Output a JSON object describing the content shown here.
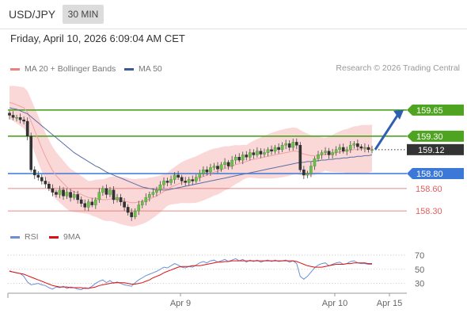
{
  "header": {
    "symbol": "USD/JPY",
    "timeframe": "30 MIN"
  },
  "panel": {
    "datetime": "Friday, April 10, 2026 6:09:04 AM CET",
    "legend": [
      {
        "label": "MA 20 + Bollinger Bands",
        "color": "#f08080"
      },
      {
        "label": "MA 50",
        "color": "#3a5a9a"
      }
    ],
    "credit": "Research © 2026 Trading Central",
    "rsi_legend": [
      {
        "label": "RSI",
        "color": "#6b8fd6"
      },
      {
        "label": "9MA",
        "color": "#dd1111"
      }
    ]
  },
  "colors": {
    "up": "#6cc04a",
    "down": "#333333",
    "wick": "#444444",
    "band": "#fbd8d8",
    "ma20": "#f0a0a0",
    "ma50": "#5a6ea8",
    "resistance": "#4ea320",
    "pivot": "#3b78d8",
    "support": "#e06060",
    "current": "#333333",
    "arrow": "#2f5fb0"
  },
  "chart_data": [
    {
      "type": "candlestick",
      "title": "USD/JPY 30 MIN",
      "x_tick_labels": [
        "Apr 9",
        "Apr 10",
        "Apr 15"
      ],
      "ylim": [
        158.1,
        159.85
      ],
      "current_price": 159.12,
      "levels": [
        {
          "label": "159.65",
          "value": 159.65,
          "kind": "resistance"
        },
        {
          "label": "159.30",
          "value": 159.3,
          "kind": "resistance"
        },
        {
          "label": "158.80",
          "value": 158.8,
          "kind": "pivot"
        },
        {
          "label": "158.60",
          "value": 158.6,
          "kind": "support"
        },
        {
          "label": "158.30",
          "value": 158.3,
          "kind": "support"
        }
      ],
      "current_label": "159.12",
      "target_arrow": {
        "from": 159.12,
        "to": 159.65
      },
      "closes": [
        159.58,
        159.55,
        159.55,
        159.52,
        159.5,
        159.3,
        158.85,
        158.78,
        158.75,
        158.7,
        158.66,
        158.6,
        158.55,
        158.52,
        158.58,
        158.5,
        158.55,
        158.48,
        158.52,
        158.45,
        158.4,
        158.35,
        158.42,
        158.38,
        158.45,
        158.55,
        158.6,
        158.52,
        158.58,
        158.45,
        158.48,
        158.42,
        158.35,
        158.28,
        158.22,
        158.3,
        158.38,
        158.42,
        158.48,
        158.52,
        158.55,
        158.58,
        158.65,
        158.7,
        158.68,
        158.72,
        158.78,
        158.75,
        158.7,
        158.68,
        158.72,
        158.7,
        158.75,
        158.8,
        158.85,
        158.82,
        158.88,
        158.9,
        158.86,
        158.92,
        158.95,
        158.9,
        158.98,
        159.02,
        158.98,
        159.05,
        159.02,
        159.08,
        159.05,
        159.1,
        159.06,
        159.08,
        159.12,
        159.1,
        159.15,
        159.12,
        159.18,
        159.2,
        159.15,
        159.22,
        159.18,
        158.85,
        158.78,
        158.8,
        158.9,
        159.0,
        159.05,
        159.08,
        159.1,
        159.05,
        159.08,
        159.12,
        159.15,
        159.1,
        159.12,
        159.18,
        159.2,
        159.16,
        159.14,
        159.15,
        159.12,
        159.12
      ],
      "ma20": [
        159.75,
        159.74,
        159.72,
        159.7,
        159.68,
        159.62,
        159.5,
        159.38,
        159.26,
        159.14,
        159.03,
        158.93,
        158.84,
        158.77,
        158.72,
        158.67,
        158.62,
        158.58,
        158.56,
        158.54,
        158.52,
        158.5,
        158.48,
        158.47,
        158.47,
        158.46,
        158.45,
        158.45,
        158.46,
        158.46,
        158.45,
        158.44,
        158.43,
        158.42,
        158.41,
        158.41,
        158.42,
        158.43,
        158.44,
        158.46,
        158.48,
        158.5,
        158.53,
        158.56,
        158.59,
        158.62,
        158.64,
        158.66,
        158.68,
        158.69,
        158.7,
        158.71,
        158.72,
        158.74,
        158.76,
        158.78,
        158.8,
        158.82,
        158.83,
        158.85,
        158.87,
        158.88,
        158.9,
        158.92,
        158.93,
        158.95,
        158.96,
        158.98,
        158.99,
        159.0,
        159.01,
        159.02,
        159.03,
        159.04,
        159.05,
        159.06,
        159.07,
        159.08,
        159.09,
        159.1,
        159.1,
        159.08,
        159.06,
        159.05,
        159.04,
        159.04,
        159.05,
        159.05,
        159.06,
        159.06,
        159.07,
        159.08,
        159.09,
        159.1,
        159.1,
        159.11,
        159.12,
        159.12,
        159.13,
        159.13,
        159.13,
        159.14
      ],
      "ma50": [
        159.68,
        159.67,
        159.66,
        159.64,
        159.62,
        159.6,
        159.56,
        159.52,
        159.48,
        159.44,
        159.4,
        159.36,
        159.32,
        159.28,
        159.24,
        159.2,
        159.16,
        159.12,
        159.08,
        159.05,
        159.02,
        158.99,
        158.96,
        158.93,
        158.9,
        158.88,
        158.85,
        158.82,
        158.8,
        158.78,
        158.76,
        158.74,
        158.72,
        158.7,
        158.68,
        158.66,
        158.64,
        158.62,
        158.61,
        158.6,
        158.59,
        158.58,
        158.58,
        158.58,
        158.58,
        158.59,
        158.6,
        158.61,
        158.62,
        158.63,
        158.64,
        158.65,
        158.66,
        158.67,
        158.68,
        158.69,
        158.7,
        158.71,
        158.72,
        158.73,
        158.74,
        158.75,
        158.76,
        158.77,
        158.78,
        158.79,
        158.8,
        158.81,
        158.82,
        158.83,
        158.84,
        158.85,
        158.86,
        158.87,
        158.88,
        158.89,
        158.9,
        158.91,
        158.92,
        158.93,
        158.94,
        158.95,
        158.95,
        158.96,
        158.96,
        158.97,
        158.97,
        158.98,
        158.98,
        158.99,
        158.99,
        159.0,
        159.0,
        159.01,
        159.01,
        159.02,
        159.02,
        159.03,
        159.03,
        159.04,
        159.04,
        159.05
      ]
    },
    {
      "type": "line",
      "title": "RSI",
      "ylim": [
        15,
        80
      ],
      "y_ticks": [
        "70",
        "50",
        "30"
      ],
      "y_tick_values": [
        70,
        50,
        30
      ],
      "rsi": [
        48,
        46,
        45,
        44,
        40,
        32,
        28,
        29,
        30,
        28,
        27,
        24,
        22,
        25,
        24,
        26,
        23,
        25,
        24,
        22,
        21,
        24,
        23,
        26,
        30,
        33,
        35,
        31,
        34,
        30,
        32,
        30,
        28,
        27,
        26,
        31,
        35,
        38,
        41,
        43,
        45,
        47,
        50,
        53,
        52,
        55,
        58,
        56,
        53,
        52,
        54,
        53,
        56,
        59,
        61,
        59,
        62,
        63,
        60,
        62,
        64,
        61,
        63,
        65,
        62,
        64,
        60,
        63,
        61,
        63,
        60,
        62,
        63,
        61,
        63,
        61,
        62,
        63,
        60,
        62,
        58,
        40,
        36,
        40,
        46,
        52,
        56,
        58,
        59,
        55,
        57,
        59,
        60,
        57,
        58,
        61,
        62,
        59,
        58,
        58,
        57,
        57
      ],
      "ma9": [
        47,
        46,
        45,
        44,
        43,
        41,
        39,
        37,
        35,
        33,
        31,
        29,
        27,
        26,
        25,
        25,
        25,
        24,
        24,
        24,
        24,
        23,
        23,
        24,
        25,
        27,
        28,
        29,
        30,
        31,
        31,
        31,
        31,
        30,
        29,
        29,
        30,
        31,
        33,
        35,
        38,
        40,
        42,
        45,
        47,
        49,
        51,
        53,
        54,
        54,
        54,
        55,
        55,
        55,
        56,
        57,
        58,
        59,
        60,
        60,
        61,
        61,
        62,
        62,
        62,
        62,
        62,
        62,
        62,
        62,
        62,
        62,
        62,
        62,
        62,
        62,
        62,
        62,
        62,
        62,
        61,
        59,
        57,
        55,
        54,
        53,
        53,
        53,
        54,
        55,
        56,
        57,
        57,
        57,
        58,
        58,
        59,
        59,
        59,
        59,
        58,
        58
      ]
    }
  ]
}
